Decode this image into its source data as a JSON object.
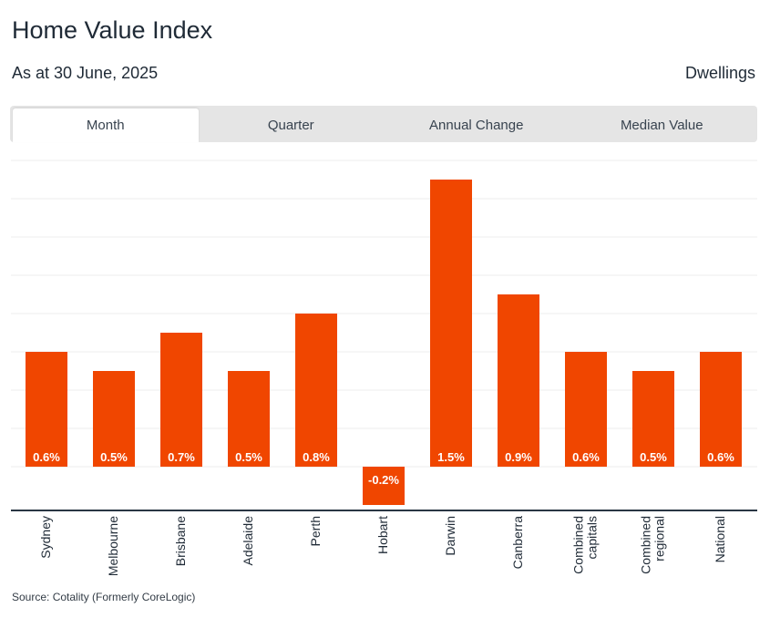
{
  "header": {
    "title": "Home Value Index",
    "subtitle": "As at 30 June, 2025",
    "right_label": "Dwellings"
  },
  "tabs": [
    {
      "label": "Month",
      "active": true
    },
    {
      "label": "Quarter",
      "active": false
    },
    {
      "label": "Annual Change",
      "active": false
    },
    {
      "label": "Median Value",
      "active": false
    }
  ],
  "colors": {
    "bar": "#f04600",
    "grid": "#ececec",
    "axis": "#2a3644",
    "tab_bg": "#e5e5e5"
  },
  "chart_data": {
    "type": "bar",
    "title": "",
    "xlabel": "",
    "ylabel": "",
    "grid": true,
    "ylim": [
      -0.2,
      1.6
    ],
    "gridline_step": 0.2,
    "categories": [
      [
        "Sydney"
      ],
      [
        "Melbourne"
      ],
      [
        "Brisbane"
      ],
      [
        "Adelaide"
      ],
      [
        "Perth"
      ],
      [
        "Hobart"
      ],
      [
        "Darwin"
      ],
      [
        "Canberra"
      ],
      [
        "Combined",
        "capitals"
      ],
      [
        "Combined",
        "regional"
      ],
      [
        "National"
      ]
    ],
    "values": [
      0.6,
      0.5,
      0.7,
      0.5,
      0.8,
      -0.2,
      1.5,
      0.9,
      0.6,
      0.5,
      0.6
    ],
    "data_labels": [
      "0.6%",
      "0.5%",
      "0.7%",
      "0.5%",
      "0.8%",
      "-0.2%",
      "1.5%",
      "0.9%",
      "0.6%",
      "0.5%",
      "0.6%"
    ]
  },
  "footer": {
    "source": "Source: Cotality (Formerly CoreLogic)"
  }
}
